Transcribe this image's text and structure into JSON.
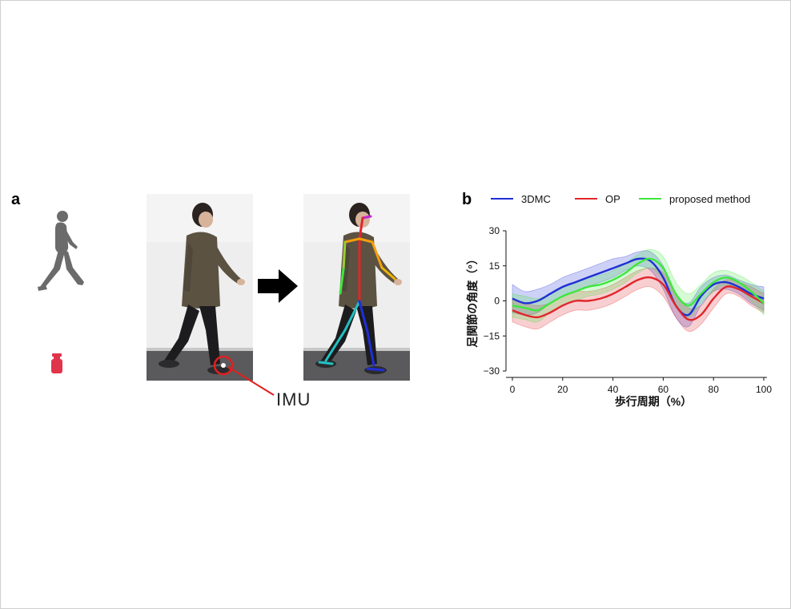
{
  "panels": {
    "a_label": "a",
    "b_label": "b"
  },
  "imu_label": "IMU",
  "colors": {
    "walker_gray": "#6b6b6b",
    "sensor_red": "#e0344a",
    "arrow": "#000000",
    "series_3dmc": "#1f2fd6",
    "series_op": "#e0262b",
    "series_proposed": "#3ee63e"
  },
  "icons": [
    "walking-person-icon",
    "imu-sensor-icon",
    "right-arrow-icon"
  ],
  "legend": [
    {
      "name": "3DMC",
      "color": "#1f2fd6"
    },
    {
      "name": "OP",
      "color": "#e0262b"
    },
    {
      "name": "proposed method",
      "color": "#3ee63e"
    }
  ],
  "chart_data": {
    "type": "line",
    "xlabel": "歩行周期（%）",
    "ylabel": "足関節の角度（°）",
    "xlim": [
      0,
      100
    ],
    "ylim": [
      -30,
      30
    ],
    "xticks": [
      0,
      20,
      40,
      60,
      80,
      100
    ],
    "yticks": [
      -30,
      -15,
      0,
      15,
      30
    ],
    "grid": false,
    "legend_position": "top",
    "x": [
      0,
      5,
      10,
      15,
      20,
      25,
      30,
      35,
      40,
      45,
      50,
      55,
      60,
      65,
      70,
      75,
      80,
      85,
      90,
      95,
      100
    ],
    "series": [
      {
        "name": "3DMC",
        "color": "#1f2fd6",
        "values": [
          1,
          -1,
          0,
          3,
          6,
          8,
          10,
          12,
          14,
          16,
          18,
          17,
          10,
          -2,
          -6,
          2,
          7,
          8,
          6,
          3,
          1
        ],
        "band": [
          6,
          5,
          5,
          4,
          4,
          4,
          4,
          4,
          4,
          3,
          3,
          4,
          5,
          5,
          5,
          4,
          3,
          3,
          3,
          4,
          5
        ]
      },
      {
        "name": "OP",
        "color": "#e0262b",
        "values": [
          -4,
          -6,
          -7,
          -5,
          -2,
          0,
          0,
          1,
          3,
          6,
          9,
          10,
          7,
          -2,
          -8,
          -6,
          1,
          6,
          5,
          2,
          -1
        ],
        "band": [
          5,
          5,
          5,
          4,
          4,
          4,
          4,
          4,
          4,
          4,
          4,
          4,
          5,
          5,
          5,
          4,
          4,
          3,
          3,
          4,
          4
        ]
      },
      {
        "name": "proposed method",
        "color": "#3ee63e",
        "values": [
          -2,
          -3,
          -4,
          -1,
          2,
          4,
          6,
          7,
          9,
          12,
          16,
          18,
          14,
          3,
          -2,
          3,
          8,
          10,
          8,
          4,
          -1
        ],
        "band": [
          5,
          5,
          5,
          4,
          4,
          4,
          4,
          4,
          4,
          4,
          4,
          4,
          5,
          5,
          5,
          4,
          4,
          3,
          3,
          4,
          5
        ]
      }
    ]
  }
}
